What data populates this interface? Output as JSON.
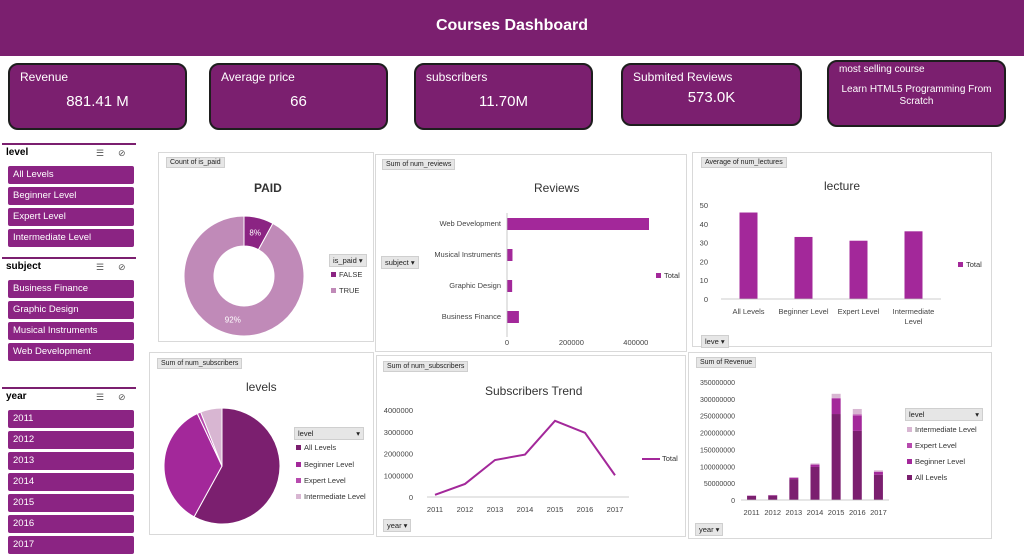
{
  "header": {
    "title": "Courses Dashboard"
  },
  "kpis": {
    "revenue": {
      "label": "Revenue",
      "value": "881.41 M"
    },
    "avg_price": {
      "label": "Average price",
      "value": "66"
    },
    "subscribers": {
      "label": "subscribers",
      "value": "11.70M"
    },
    "reviews": {
      "label": "Submited Reviews",
      "value": "573.0K"
    },
    "best": {
      "label": "most selling course",
      "value": "Learn HTML5 Programming From Scratch"
    }
  },
  "slicers": {
    "level": {
      "title": "level",
      "items": [
        "All Levels",
        "Beginner Level",
        "Expert Level",
        "Intermediate Level"
      ]
    },
    "subject": {
      "title": "subject",
      "items": [
        "Business Finance",
        "Graphic Design",
        "Musical Instruments",
        "Web Development"
      ]
    },
    "year": {
      "title": "year",
      "items": [
        "2011",
        "2012",
        "2013",
        "2014",
        "2015",
        "2016",
        "2017"
      ]
    }
  },
  "colors": {
    "primary": "#7b1f6f",
    "bar": "#a3289a",
    "light": "#c08ab8",
    "dark": "#6f1d66"
  },
  "panels": {
    "paid": {
      "tag": "Count of is_paid",
      "title": "PAID",
      "filter": "is_paid",
      "legend": [
        "FALSE",
        "TRUE"
      ]
    },
    "reviews": {
      "tag": "Sum of num_reviews",
      "title": "Reviews",
      "filter": "subject",
      "legend": "Total"
    },
    "lecture": {
      "tag": "Average of num_lectures",
      "title": "lecture",
      "filter": "leve",
      "legend": "Total"
    },
    "levels": {
      "tag": "Sum of num_subscribers",
      "title": "levels",
      "filter": "level",
      "legend": [
        "All Levels",
        "Beginner Level",
        "Expert Level",
        "Intermediate Level"
      ]
    },
    "trend": {
      "tag": "Sum of num_subscribers",
      "title": "Subscribers Trend",
      "filter": "year",
      "legend": "Total"
    },
    "revenue": {
      "tag": "Sum of Revenue",
      "filter": "year",
      "legend_title": "level",
      "legend": [
        "Intermediate Level",
        "Expert Level",
        "Beginner Level",
        "All Levels"
      ]
    }
  },
  "chart_data": [
    {
      "type": "pie",
      "title": "PAID",
      "categories": [
        "FALSE",
        "TRUE"
      ],
      "values": [
        8,
        92
      ],
      "labels": [
        "8%",
        "92%"
      ]
    },
    {
      "type": "bar",
      "title": "Reviews",
      "categories": [
        "Web Development",
        "Musical Instruments",
        "Graphic Design",
        "Business Finance"
      ],
      "values": [
        441000,
        17000,
        16000,
        37000
      ],
      "xticks": [
        "0",
        "200000",
        "400000"
      ],
      "xlim": [
        0,
        500000
      ],
      "series": [
        {
          "name": "Total",
          "values": [
            441000,
            17000,
            16000,
            37000
          ]
        }
      ]
    },
    {
      "type": "bar",
      "title": "lecture",
      "categories": [
        "All Levels",
        "Beginner Level",
        "Expert Level",
        "Intermediate Level"
      ],
      "values": [
        46,
        33,
        31,
        36
      ],
      "ylim": [
        0,
        50
      ],
      "yticks": [
        "0",
        "10",
        "20",
        "30",
        "40",
        "50"
      ],
      "series": [
        {
          "name": "Total",
          "values": [
            46,
            33,
            31,
            36
          ]
        }
      ]
    },
    {
      "type": "pie",
      "title": "levels",
      "categories": [
        "All Levels",
        "Beginner Level",
        "Expert Level",
        "Intermediate Level"
      ],
      "values": [
        58,
        35,
        1,
        6
      ]
    },
    {
      "type": "line",
      "title": "Subscribers Trend",
      "x": [
        "2011",
        "2012",
        "2013",
        "2014",
        "2015",
        "2016",
        "2017"
      ],
      "values": [
        100000,
        600000,
        1700000,
        1950000,
        3500000,
        2950000,
        1000000
      ],
      "ylim": [
        0,
        4000000
      ],
      "yticks": [
        "0",
        "1000000",
        "2000000",
        "3000000",
        "4000000"
      ],
      "series": [
        {
          "name": "Total",
          "values": [
            100000,
            600000,
            1700000,
            1950000,
            3500000,
            2950000,
            1000000
          ]
        }
      ]
    },
    {
      "type": "bar",
      "categories": [
        "2011",
        "2012",
        "2013",
        "2014",
        "2015",
        "2016",
        "2017"
      ],
      "ylim": [
        0,
        350000000
      ],
      "yticks": [
        "0",
        "50000000",
        "100000000",
        "150000000",
        "200000000",
        "250000000",
        "300000000",
        "350000000"
      ],
      "series": [
        {
          "name": "All Levels",
          "values": [
            12000000,
            13000000,
            62000000,
            98000000,
            255000000,
            205000000,
            75000000
          ]
        },
        {
          "name": "Beginner Level",
          "values": [
            1000000,
            1500000,
            4000000,
            7000000,
            45000000,
            45000000,
            8000000
          ]
        },
        {
          "name": "Expert Level",
          "values": [
            0,
            0,
            300000,
            500000,
            3000000,
            4000000,
            1000000
          ]
        },
        {
          "name": "Intermediate Level",
          "values": [
            500000,
            500000,
            1500000,
            3000000,
            12000000,
            16000000,
            4000000
          ]
        }
      ]
    }
  ]
}
